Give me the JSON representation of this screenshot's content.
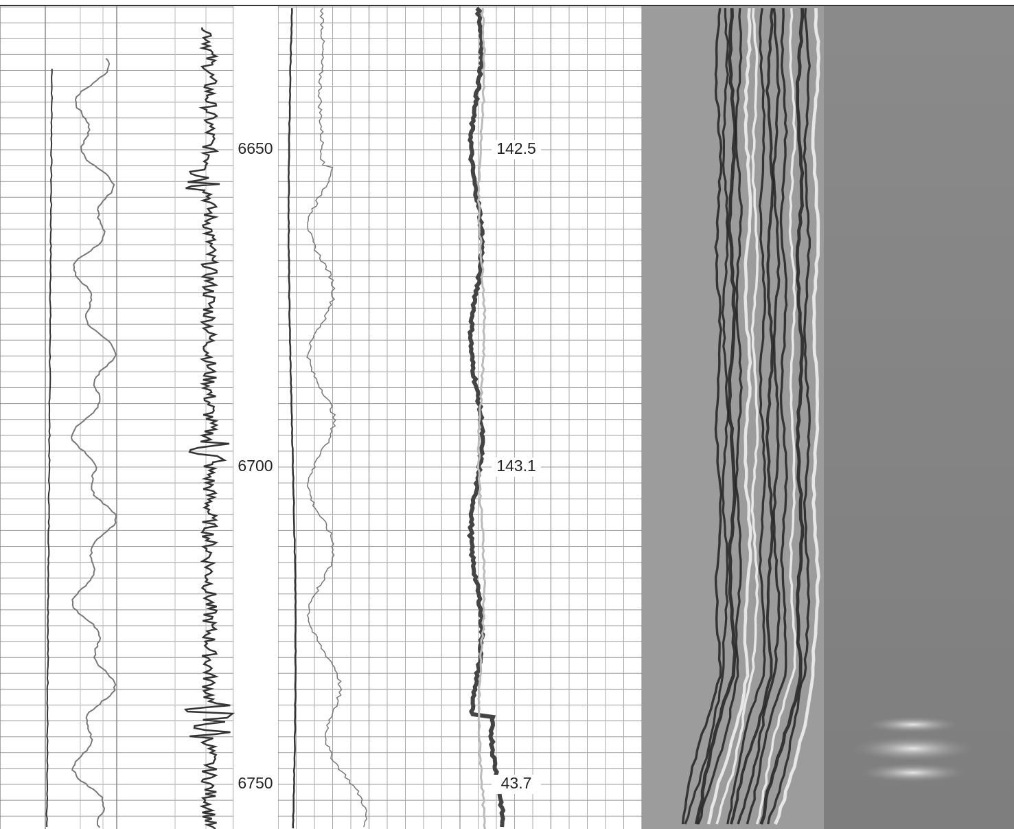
{
  "depth_track": {
    "depths": [
      6650,
      6700,
      6750
    ]
  },
  "annotations": [
    "142.5",
    "143.1",
    "43.7"
  ]
}
